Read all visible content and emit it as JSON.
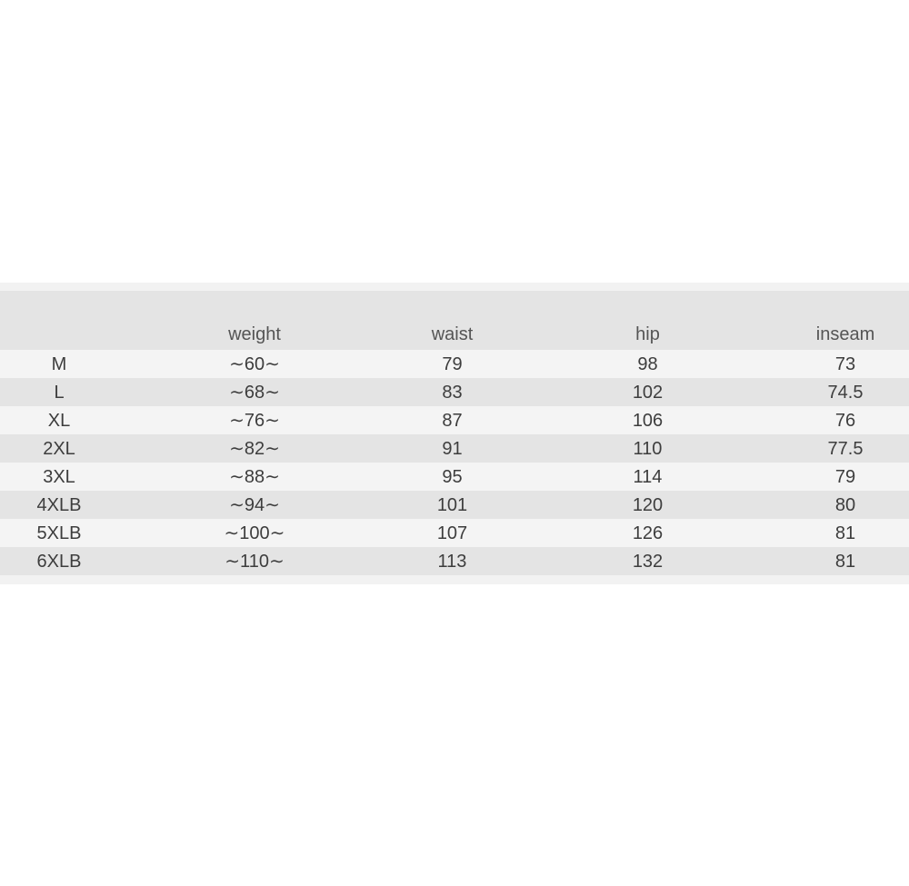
{
  "size_chart": {
    "headers": {
      "size": "",
      "weight": "weight",
      "waist": "waist",
      "hip": "hip",
      "inseam": "inseam"
    },
    "rows": [
      {
        "size": "M",
        "weight": "∼60∼",
        "waist": "79",
        "hip": "98",
        "inseam": "73"
      },
      {
        "size": "L",
        "weight": "∼68∼",
        "waist": "83",
        "hip": "102",
        "inseam": "74.5"
      },
      {
        "size": "XL",
        "weight": "∼76∼",
        "waist": "87",
        "hip": "106",
        "inseam": "76"
      },
      {
        "size": "2XL",
        "weight": "∼82∼",
        "waist": "91",
        "hip": "110",
        "inseam": "77.5"
      },
      {
        "size": "3XL",
        "weight": "∼88∼",
        "waist": "95",
        "hip": "114",
        "inseam": "79"
      },
      {
        "size": "4XLB",
        "weight": "∼94∼",
        "waist": "101",
        "hip": "120",
        "inseam": "80"
      },
      {
        "size": "5XLB",
        "weight": "∼100∼",
        "waist": "107",
        "hip": "126",
        "inseam": "81"
      },
      {
        "size": "6XLB",
        "weight": "∼110∼",
        "waist": "113",
        "hip": "132",
        "inseam": "81"
      }
    ],
    "colors": {
      "row_light": "#f4f4f4",
      "row_dark": "#e4e4e4",
      "edge_strip": "#f2f2f2",
      "header_text": "#555555",
      "cell_text": "#3d3d3d",
      "page_background": "#ffffff"
    }
  }
}
